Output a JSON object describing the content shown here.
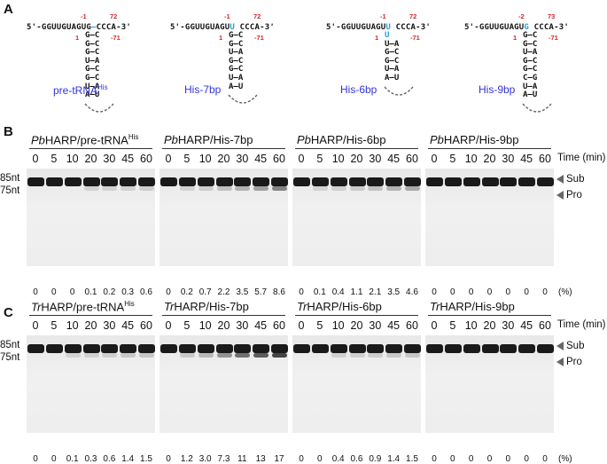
{
  "panel_a": {
    "letter": "A",
    "seq_5": "5'-GGUUGUAGU",
    "seq_3": "CCCA-3'",
    "constructs": [
      {
        "name": "pre-tRNA",
        "sup": "His",
        "tail": "G",
        "top_left": "-1",
        "top_right": "72",
        "bottom_left": "1",
        "bottom_right": "-71",
        "stem": [
          "G—C",
          "G—C",
          "G—C",
          "U—A",
          "G—C",
          "G—C",
          "U—A",
          "A—U"
        ]
      },
      {
        "name": "His-7bp",
        "sup": "",
        "tail": "U",
        "top_left": "-1",
        "top_right": "72",
        "bottom_left": "1",
        "bottom_right": "-71",
        "stem": [
          "G—C",
          "G—C",
          "U—A",
          "G—C",
          "G—C",
          "U—A",
          "A—U"
        ]
      },
      {
        "name": "His-6bp",
        "sup": "",
        "tail": "U",
        "top_left": "-1",
        "top_right": "72",
        "bottom_left": "1",
        "bottom_right": "-71",
        "stem": [
          "U",
          "U—A",
          "G—C",
          "G—C",
          "U—A",
          "A—U"
        ]
      },
      {
        "name": "His-9bp",
        "sup": "",
        "tail": "G",
        "top_left": "-2",
        "top_right": "73",
        "bottom_left": "1",
        "bottom_right": "-71",
        "stem": [
          "G—C",
          "G—C",
          "U—A",
          "G—C",
          "G—C",
          "C—G",
          "U—A",
          "A—U"
        ]
      }
    ]
  },
  "time_points": [
    "0",
    "5",
    "10",
    "20",
    "30",
    "45",
    "60"
  ],
  "time_unit": "Time (min)",
  "pct_unit": "(%)",
  "markers": {
    "sub_size": "85nt",
    "pro_size": "75nt",
    "sub": "Sub",
    "pro": "Pro"
  },
  "panel_b": {
    "letter": "B",
    "gels": [
      {
        "enzyme": "Pb",
        "title_rest": "HARP/pre-tRNA",
        "sup": "His",
        "percent": [
          "0",
          "0",
          "0",
          "0.1",
          "0.2",
          "0.3",
          "0.6"
        ],
        "product": [
          0,
          0,
          0,
          0.1,
          0.2,
          0.3,
          0.6
        ]
      },
      {
        "enzyme": "Pb",
        "title_rest": "HARP/His-7bp",
        "sup": "",
        "percent": [
          "0",
          "0.2",
          "0.7",
          "2.2",
          "3.5",
          "5.7",
          "8.6"
        ],
        "product": [
          0,
          0.2,
          0.7,
          2.2,
          3.5,
          5.7,
          8.6
        ]
      },
      {
        "enzyme": "Pb",
        "title_rest": "HARP/His-6bp",
        "sup": "",
        "percent": [
          "0",
          "0.1",
          "0.4",
          "1.1",
          "2.1",
          "3.5",
          "4.6"
        ],
        "product": [
          0,
          0.1,
          0.4,
          1.1,
          2.1,
          3.5,
          4.6
        ]
      },
      {
        "enzyme": "Pb",
        "title_rest": "HARP/His-9bp",
        "sup": "",
        "percent": [
          "0",
          "0",
          "0",
          "0",
          "0",
          "0",
          "0"
        ],
        "product": [
          0,
          0,
          0,
          0,
          0,
          0,
          0
        ]
      }
    ]
  },
  "panel_c": {
    "letter": "C",
    "gels": [
      {
        "enzyme": "Tr",
        "title_rest": "HARP/pre-tRNA",
        "sup": "His",
        "percent": [
          "0",
          "0",
          "0.1",
          "0.3",
          "0.6",
          "1.4",
          "1.5"
        ],
        "product": [
          0,
          0,
          0.1,
          0.3,
          0.6,
          1.4,
          1.5
        ]
      },
      {
        "enzyme": "Tr",
        "title_rest": "HARP/His-7bp",
        "sup": "",
        "percent": [
          "0",
          "1.2",
          "3.0",
          "7.3",
          "11",
          "13",
          "17"
        ],
        "product": [
          0,
          1.2,
          3.0,
          7.3,
          11,
          13,
          17
        ]
      },
      {
        "enzyme": "Tr",
        "title_rest": "HARP/His-6bp",
        "sup": "",
        "percent": [
          "0",
          "0",
          "0.4",
          "0.6",
          "0.9",
          "1.4",
          "1.5"
        ],
        "product": [
          0,
          0,
          0.4,
          0.6,
          0.9,
          1.4,
          1.5
        ]
      },
      {
        "enzyme": "Tr",
        "title_rest": "HARP/His-9bp",
        "sup": "",
        "percent": [
          "0",
          "0",
          "0",
          "0",
          "0",
          "0",
          "0"
        ],
        "product": [
          0,
          0,
          0,
          0,
          0,
          0,
          0
        ]
      }
    ]
  }
}
